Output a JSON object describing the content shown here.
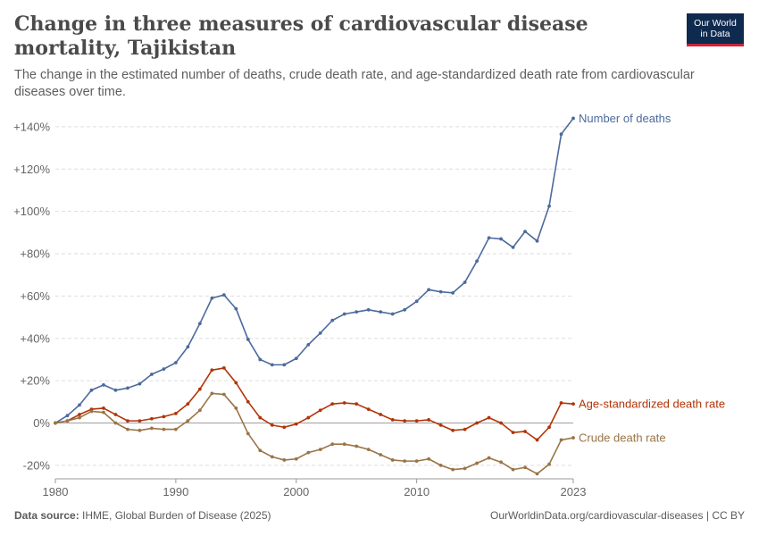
{
  "title": "Change in three measures of cardiovascular disease mortality, Tajikistan",
  "subtitle": "The change in the estimated number of deaths, crude death rate, and age-standardized death rate from cardiovascular diseases over time.",
  "logo": {
    "line1": "Our World",
    "line2": "in Data"
  },
  "footer": {
    "source_label": "Data source:",
    "source_text": "IHME, Global Burden of Disease (2025)",
    "url_text": "OurWorldinData.org/cardiovascular-diseases | CC BY"
  },
  "colors": {
    "number_of_deaths": "#4c6a9c",
    "age_standardized": "#b13507",
    "crude": "#9a7446",
    "grid": "#dddddd",
    "zero_line": "#a0a0a0",
    "logo_bg": "#0f2a4f",
    "logo_accent": "#c8253a"
  },
  "chart_data": {
    "type": "line",
    "x": [
      1980,
      1981,
      1982,
      1983,
      1984,
      1985,
      1986,
      1987,
      1988,
      1989,
      1990,
      1991,
      1992,
      1993,
      1994,
      1995,
      1996,
      1997,
      1998,
      1999,
      2000,
      2001,
      2002,
      2003,
      2004,
      2005,
      2006,
      2007,
      2008,
      2009,
      2010,
      2011,
      2012,
      2013,
      2014,
      2015,
      2016,
      2017,
      2018,
      2019,
      2020,
      2021,
      2022,
      2023
    ],
    "x_ticks": [
      1980,
      1990,
      2000,
      2010,
      2023
    ],
    "xlim": [
      1980,
      2023
    ],
    "ylim": [
      -25,
      145
    ],
    "y_ticks": [
      -20,
      0,
      20,
      40,
      60,
      80,
      100,
      120,
      140
    ],
    "y_tick_labels": [
      "-20%",
      "0%",
      "+20%",
      "+40%",
      "+60%",
      "+80%",
      "+100%",
      "+120%",
      "+140%"
    ],
    "grid": true,
    "series": [
      {
        "name": "Number of deaths",
        "color_key": "number_of_deaths",
        "values": [
          0,
          3.5,
          8.5,
          15.5,
          18,
          15.5,
          16.5,
          18.5,
          23,
          25.5,
          28.5,
          36,
          47,
          59,
          60.5,
          54,
          39.5,
          30,
          27.5,
          27.5,
          30.5,
          37,
          42.5,
          48.5,
          51.5,
          52.5,
          53.5,
          52.5,
          51.5,
          53.5,
          57.5,
          63,
          62,
          61.5,
          66.5,
          76.5,
          87.5,
          87,
          83,
          90.5,
          86,
          102.5,
          136.5,
          144
        ]
      },
      {
        "name": "Age-standardized death rate",
        "color_key": "age_standardized",
        "values": [
          0,
          1,
          4,
          6.5,
          7,
          4,
          1,
          1,
          2,
          3,
          4.5,
          9,
          16,
          25,
          26,
          19,
          10,
          2.5,
          -1,
          -2,
          -0.5,
          2.5,
          6,
          9,
          9.5,
          9,
          6.5,
          4,
          1.5,
          1,
          1,
          1.5,
          -1,
          -3.5,
          -3,
          0,
          2.5,
          0,
          -4.5,
          -4,
          -8,
          -2,
          9.5,
          9
        ]
      },
      {
        "name": "Crude death rate",
        "color_key": "crude",
        "values": [
          0,
          1,
          2.5,
          5.5,
          5,
          0,
          -3,
          -3.5,
          -2.5,
          -3,
          -3,
          1,
          6,
          14,
          13.5,
          7,
          -5,
          -13,
          -16,
          -17.5,
          -17,
          -14,
          -12.5,
          -10,
          -10,
          -11,
          -12.5,
          -15,
          -17.5,
          -18,
          -18,
          -17,
          -20,
          -22,
          -21.5,
          -19,
          -16.5,
          -18.5,
          -22,
          -21,
          -24,
          -19.5,
          -8,
          -7
        ]
      }
    ]
  }
}
